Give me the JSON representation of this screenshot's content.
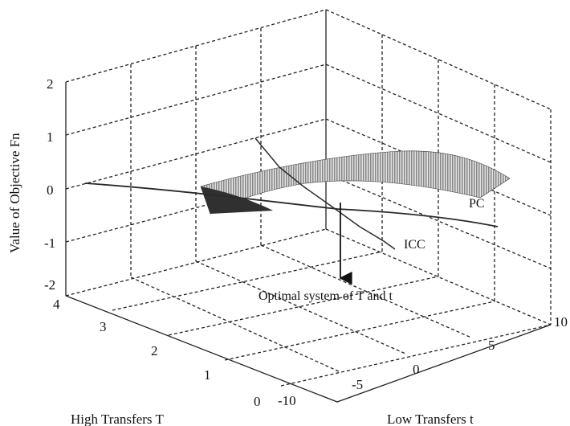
{
  "chart_data": {
    "type": "surface3d",
    "zlabel": "Value of Objective Fn",
    "ylabel": "High Transfers T",
    "xlabel": "Low Transfers t",
    "z_ticks": [
      "2",
      "1",
      "0",
      "-1",
      "-2"
    ],
    "T_ticks": [
      "4",
      "3",
      "2",
      "1",
      "0"
    ],
    "t_ticks": [
      "-10",
      "-5",
      "0",
      "5",
      "10"
    ],
    "zlim": [
      -2,
      2
    ],
    "Tlim": [
      0,
      4
    ],
    "tlim": [
      -10,
      10
    ],
    "grid": true,
    "series": [
      {
        "name": "PC",
        "kind": "surface"
      },
      {
        "name": "ICC",
        "kind": "curve"
      }
    ],
    "annotations": [
      "PC",
      "ICC",
      "Optimal system of T and t"
    ]
  }
}
